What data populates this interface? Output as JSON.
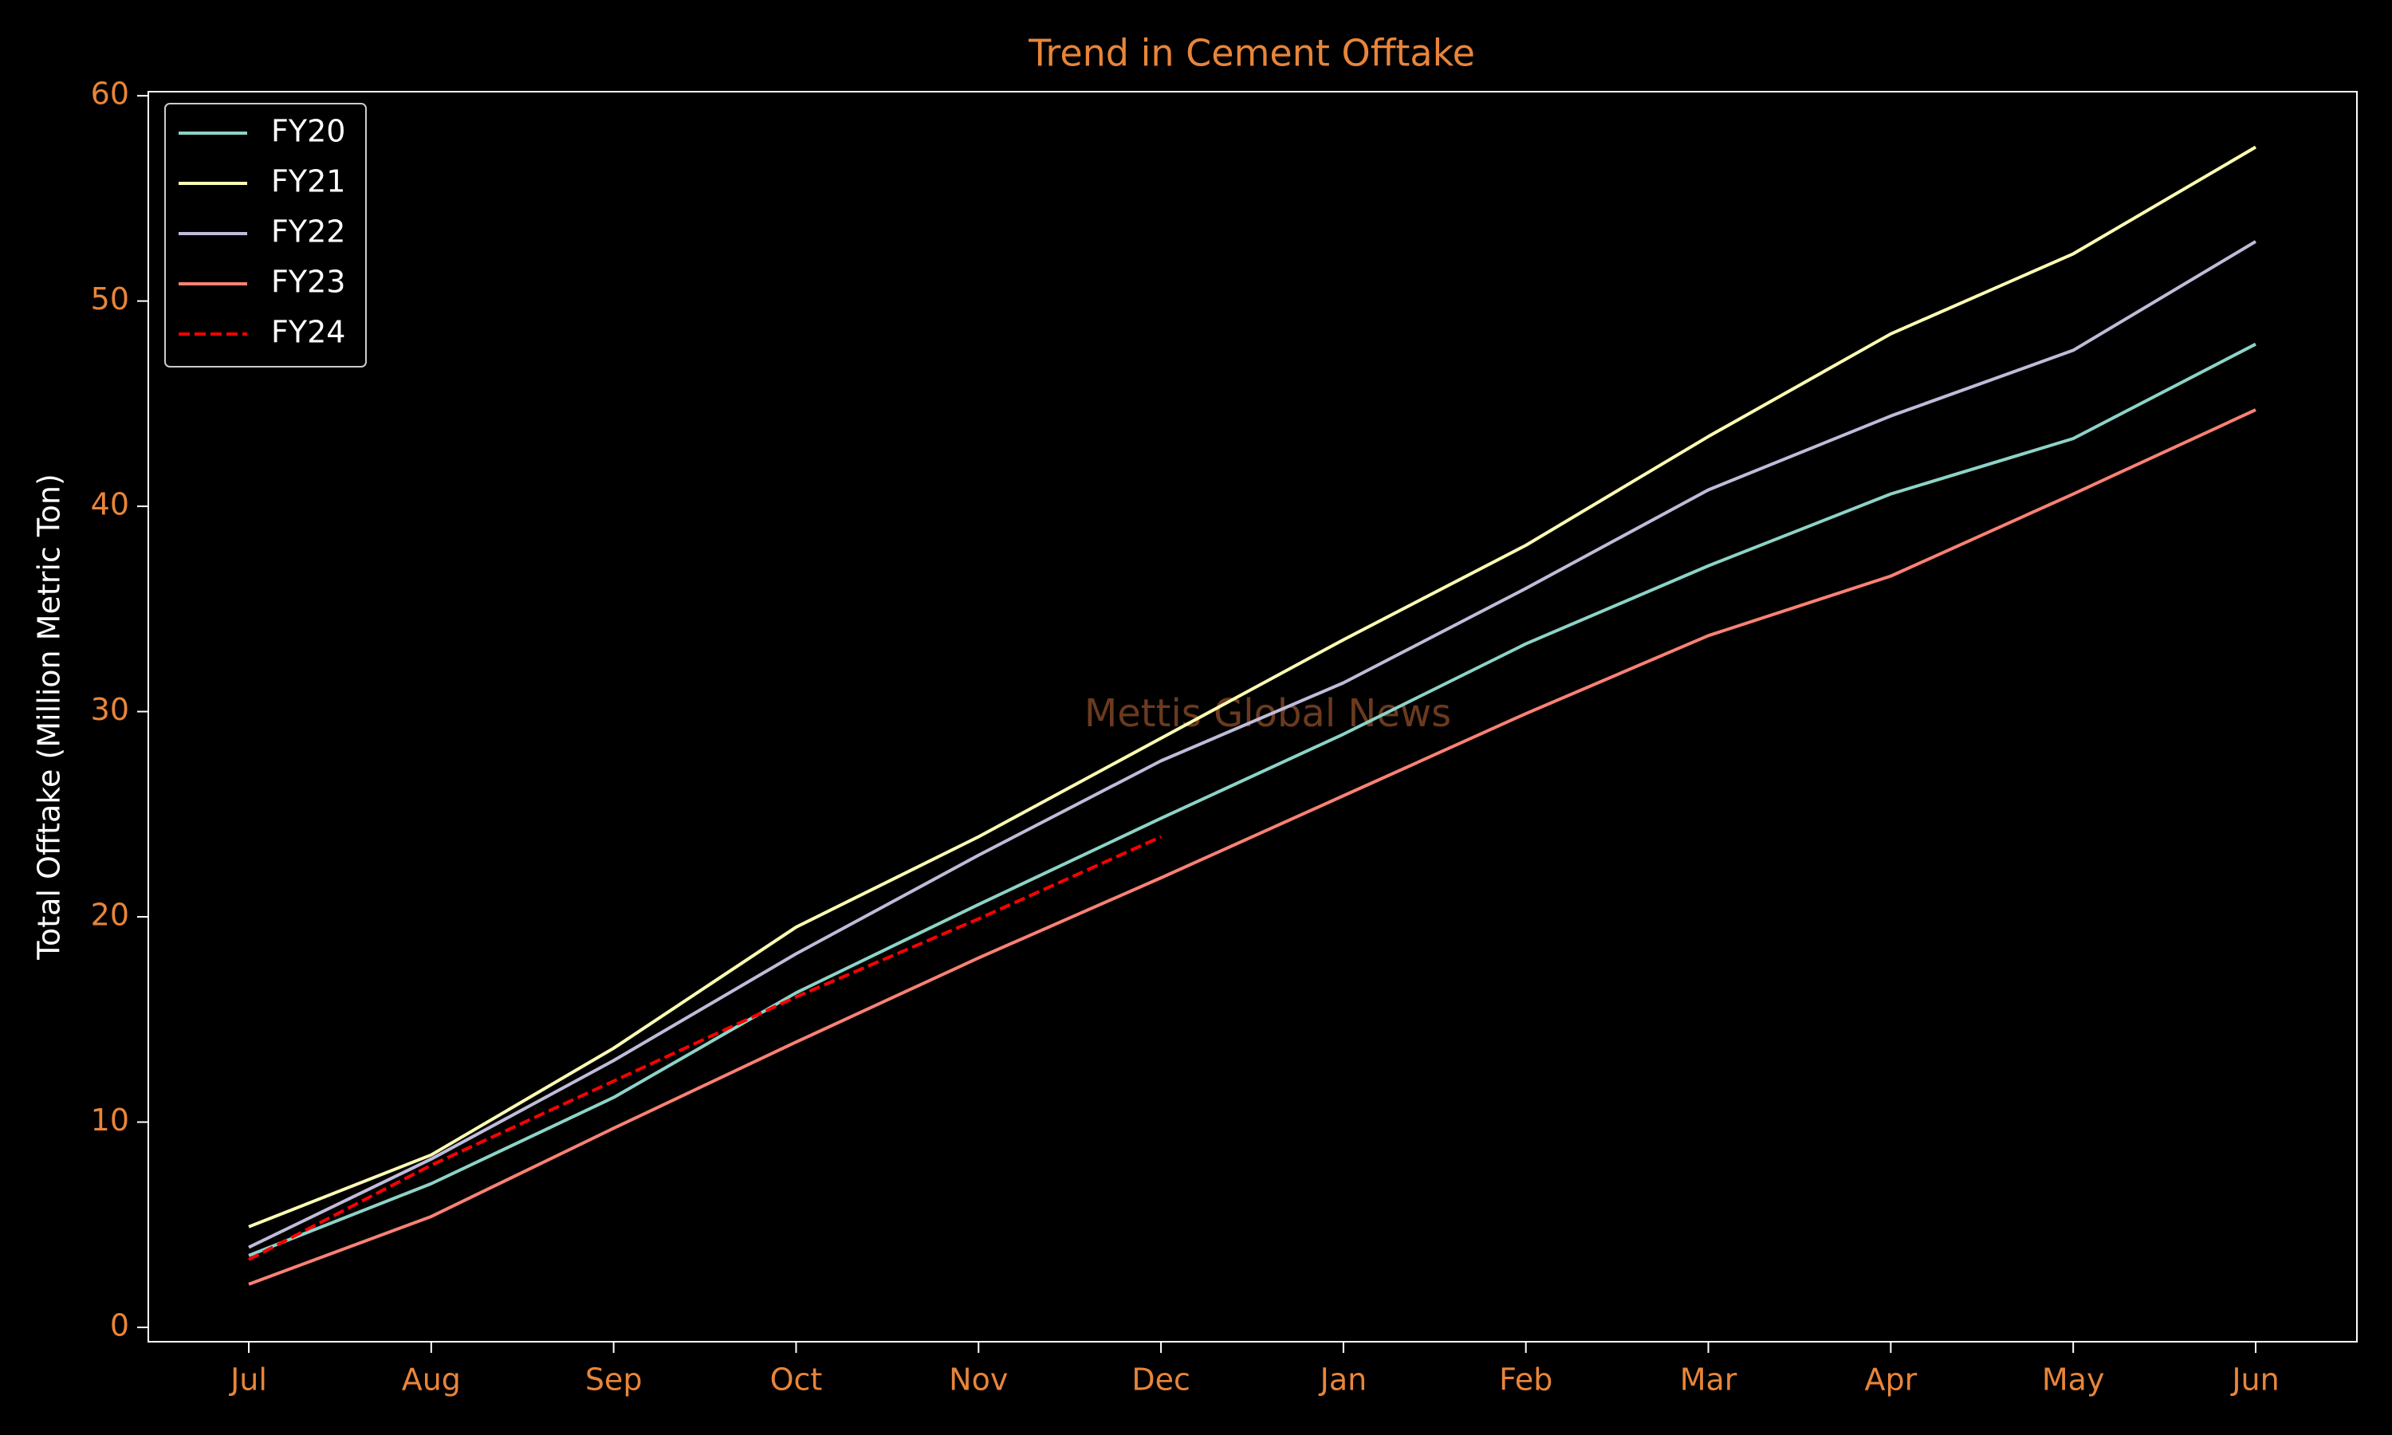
{
  "chart_data": {
    "type": "line",
    "title": "Trend in Cement Offtake",
    "y_label": "Total Offtake (Million Metric Ton)",
    "watermark": "Mettis Global News",
    "categories": [
      "Jul",
      "Aug",
      "Sep",
      "Oct",
      "Nov",
      "Dec",
      "Jan",
      "Feb",
      "Mar",
      "Apr",
      "May",
      "Jun"
    ],
    "series": [
      {
        "name": "FY20",
        "color": "#8dd3c7",
        "linestyle": "solid",
        "values": [
          3.5,
          7.0,
          11.2,
          16.3,
          20.6,
          24.8,
          28.9,
          33.3,
          37.1,
          40.6,
          43.3,
          47.9
        ]
      },
      {
        "name": "FY21",
        "color": "#feffb3",
        "linestyle": "solid",
        "values": [
          4.9,
          8.4,
          13.6,
          19.5,
          23.9,
          28.7,
          33.5,
          38.1,
          43.4,
          48.4,
          52.3,
          57.5
        ]
      },
      {
        "name": "FY22",
        "color": "#bfbbd9",
        "linestyle": "solid",
        "values": [
          3.9,
          8.2,
          13.0,
          18.2,
          23.0,
          27.6,
          31.4,
          36.0,
          40.8,
          44.4,
          47.6,
          52.9
        ]
      },
      {
        "name": "FY23",
        "color": "#fa8174",
        "linestyle": "solid",
        "values": [
          2.1,
          5.4,
          9.7,
          13.9,
          18.0,
          21.9,
          25.9,
          29.9,
          33.7,
          36.6,
          40.6,
          44.7
        ]
      },
      {
        "name": "FY24",
        "color": "#ff0000",
        "linestyle": "dashed",
        "values": [
          3.3,
          7.9,
          12.0,
          16.1,
          19.9,
          23.9,
          null,
          null,
          null,
          null,
          null,
          null
        ]
      }
    ],
    "ylim": [
      -0.7,
      60.2
    ],
    "yticks": [
      0,
      10,
      20,
      30,
      40,
      50,
      60
    ],
    "legend": "upper left",
    "grid": false
  }
}
